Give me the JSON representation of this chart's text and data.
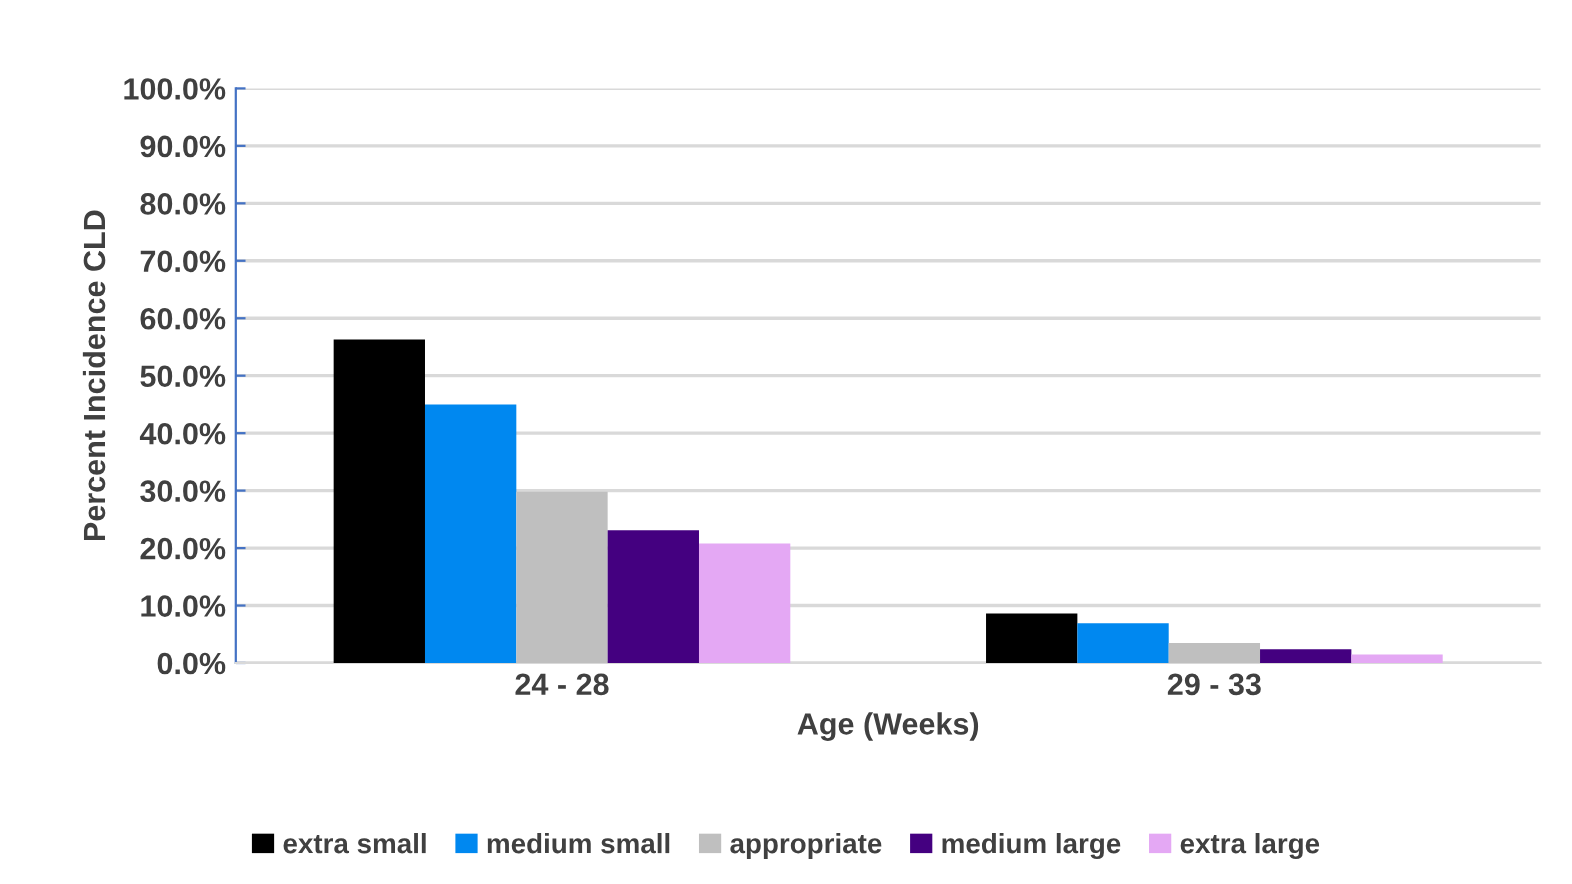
{
  "chart_data": {
    "type": "bar",
    "xlabel": "Age (Weeks)",
    "ylabel": "Percent Incidence CLD",
    "categories": [
      "24 - 28",
      "29 - 33"
    ],
    "series": [
      {
        "name": "extra small",
        "color": "#000000",
        "values": [
          56.3,
          8.6
        ]
      },
      {
        "name": "medium small",
        "color": "#0088f0",
        "values": [
          45.0,
          6.9
        ]
      },
      {
        "name": "appropriate",
        "color": "#bfbfbf",
        "values": [
          29.8,
          3.5
        ]
      },
      {
        "name": "medium large",
        "color": "#440080",
        "values": [
          23.1,
          2.4
        ]
      },
      {
        "name": "extra large",
        "color": "#e4a8f4",
        "values": [
          20.8,
          1.5
        ]
      }
    ],
    "ylim": [
      0,
      100
    ],
    "yticks": [
      {
        "value": 0,
        "label": "0.0%"
      },
      {
        "value": 10,
        "label": "10.0%"
      },
      {
        "value": 20,
        "label": "20.0%"
      },
      {
        "value": 30,
        "label": "30.0%"
      },
      {
        "value": 40,
        "label": "40.0%"
      },
      {
        "value": 50,
        "label": "50.0%"
      },
      {
        "value": 60,
        "label": "60.0%"
      },
      {
        "value": 70,
        "label": "70.0%"
      },
      {
        "value": 80,
        "label": "80.0%"
      },
      {
        "value": 90,
        "label": "90.0%"
      },
      {
        "value": 100,
        "label": "100.0%"
      }
    ],
    "grid": "y",
    "legend": "bottom"
  }
}
